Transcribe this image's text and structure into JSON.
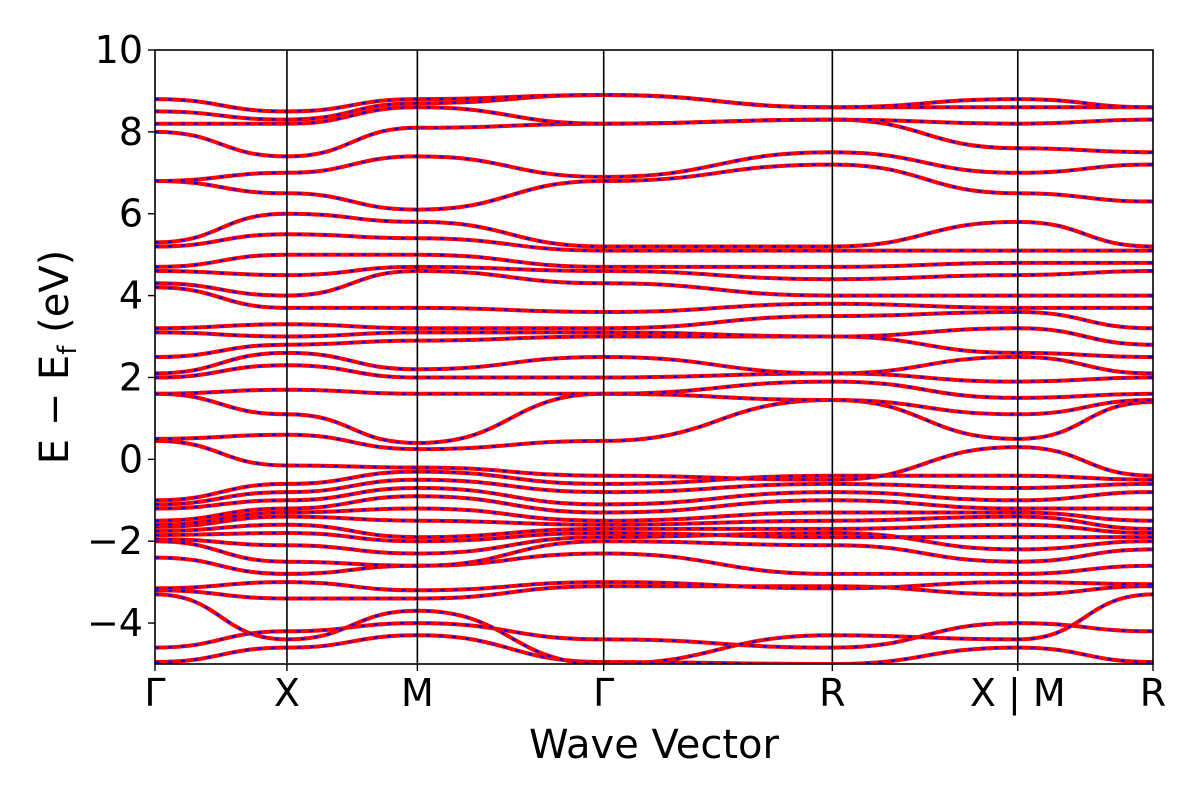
{
  "chart_data": {
    "type": "line",
    "xlabel": "Wave Vector",
    "ylabel_main": "E − E",
    "ylabel_sub": "f",
    "ylabel_unit": " (eV)",
    "ylim": [
      -5,
      10
    ],
    "yticks": [
      {
        "value": -4,
        "label": "−4"
      },
      {
        "value": -2,
        "label": "−2"
      },
      {
        "value": 0,
        "label": "0"
      },
      {
        "value": 2,
        "label": "2"
      },
      {
        "value": 4,
        "label": "4"
      },
      {
        "value": 6,
        "label": "6"
      },
      {
        "value": 8,
        "label": "8"
      },
      {
        "value": 10,
        "label": "10"
      }
    ],
    "xlim": [
      0,
      1
    ],
    "kpoints": [
      {
        "pos": 0.0,
        "label": "Γ"
      },
      {
        "pos": 0.1322,
        "label": "X"
      },
      {
        "pos": 0.2629,
        "label": "M"
      },
      {
        "pos": 0.4496,
        "label": "Γ"
      },
      {
        "pos": 0.6787,
        "label": "R"
      },
      {
        "pos": 0.8645,
        "label": "X | M"
      },
      {
        "pos": 1.0,
        "label": "R"
      }
    ],
    "segment_break": 0.8645,
    "series": [
      {
        "color": "#ff0000",
        "style": "solid"
      },
      {
        "color": "#0000ff",
        "style": "dashed"
      }
    ],
    "bands": [
      {
        "y": [
          -4.95,
          -4.6,
          -4.3,
          -4.95,
          -5.0,
          -4.6,
          -4.95
        ]
      },
      {
        "y": [
          -4.6,
          -4.2,
          -4.0,
          -4.4,
          -4.6,
          -4.0,
          -4.2
        ]
      },
      {
        "y": [
          -3.3,
          -4.4,
          -3.7,
          -5.0,
          -4.3,
          -4.4,
          -3.3
        ]
      },
      {
        "y": [
          -3.2,
          -3.4,
          -3.4,
          -3.1,
          -3.1,
          -3.3,
          -3.1
        ]
      },
      {
        "y": [
          -3.15,
          -3.0,
          -3.2,
          -3.0,
          -3.15,
          -3.0,
          -3.05
        ]
      },
      {
        "y": [
          -2.4,
          -2.8,
          -2.6,
          -2.3,
          -2.8,
          -2.8,
          -2.6
        ]
      },
      {
        "y": [
          -2.0,
          -2.5,
          -2.6,
          -2.0,
          -2.1,
          -2.5,
          -2.2
        ]
      },
      {
        "y": [
          -1.95,
          -2.1,
          -2.3,
          -1.9,
          -1.8,
          -2.2,
          -2.0
        ]
      },
      {
        "y": [
          -1.85,
          -1.8,
          -2.0,
          -1.8,
          -1.9,
          -1.9,
          -1.9
        ]
      },
      {
        "y": [
          -1.75,
          -1.6,
          -1.9,
          -1.7,
          -1.7,
          -1.6,
          -1.8
        ]
      },
      {
        "y": [
          -1.65,
          -1.4,
          -1.5,
          -1.6,
          -1.5,
          -1.4,
          -1.7
        ]
      },
      {
        "y": [
          -1.6,
          -1.3,
          -1.2,
          -1.5,
          -1.3,
          -1.3,
          -1.5
        ]
      },
      {
        "y": [
          -1.5,
          -1.2,
          -0.9,
          -1.3,
          -1.0,
          -1.2,
          -1.2
        ]
      },
      {
        "y": [
          -1.2,
          -1.0,
          -0.7,
          -1.1,
          -0.8,
          -1.0,
          -0.8
        ]
      },
      {
        "y": [
          -1.1,
          -0.8,
          -0.5,
          -0.8,
          -0.6,
          -0.7,
          -0.6
        ]
      },
      {
        "y": [
          -1.0,
          -0.6,
          -0.3,
          -0.6,
          -0.4,
          -0.4,
          -0.5
        ]
      },
      {
        "y": [
          0.45,
          -0.15,
          -0.2,
          -0.4,
          -0.5,
          0.3,
          -0.4
        ]
      },
      {
        "y": [
          0.5,
          0.6,
          0.25,
          0.45,
          1.45,
          0.5,
          1.4
        ]
      },
      {
        "y": [
          1.6,
          1.1,
          0.4,
          1.6,
          1.45,
          1.1,
          1.45
        ]
      },
      {
        "y": [
          1.6,
          1.7,
          1.6,
          1.6,
          1.9,
          1.5,
          1.6
        ]
      },
      {
        "y": [
          2.0,
          2.3,
          2.0,
          2.0,
          2.1,
          1.9,
          2.0
        ]
      },
      {
        "y": [
          2.1,
          2.6,
          2.2,
          2.5,
          2.1,
          2.5,
          2.1
        ]
      },
      {
        "y": [
          2.5,
          2.8,
          2.9,
          3.0,
          3.0,
          2.6,
          2.5
        ]
      },
      {
        "y": [
          3.1,
          3.0,
          3.1,
          3.1,
          3.0,
          3.2,
          2.8
        ]
      },
      {
        "y": [
          3.2,
          3.3,
          3.2,
          3.2,
          3.5,
          3.6,
          3.2
        ]
      },
      {
        "y": [
          4.2,
          3.7,
          3.7,
          3.6,
          3.8,
          3.7,
          3.7
        ]
      },
      {
        "y": [
          4.3,
          4.0,
          4.6,
          4.3,
          4.0,
          4.0,
          4.0
        ]
      },
      {
        "y": [
          4.6,
          4.5,
          4.7,
          4.6,
          4.4,
          4.5,
          4.6
        ]
      },
      {
        "y": [
          4.7,
          5.0,
          5.0,
          4.7,
          4.7,
          4.8,
          4.8
        ]
      },
      {
        "y": [
          5.2,
          5.5,
          5.4,
          5.1,
          5.1,
          5.1,
          5.1
        ]
      },
      {
        "y": [
          5.3,
          6.0,
          5.8,
          5.2,
          5.2,
          5.8,
          5.2
        ]
      },
      {
        "y": [
          6.8,
          6.5,
          6.1,
          6.8,
          7.2,
          6.5,
          6.3
        ]
      },
      {
        "y": [
          6.8,
          7.0,
          7.4,
          6.9,
          7.5,
          7.0,
          7.2
        ]
      },
      {
        "y": [
          8.0,
          7.4,
          8.1,
          8.2,
          8.3,
          7.6,
          7.5
        ]
      },
      {
        "y": [
          8.2,
          8.2,
          8.6,
          8.2,
          8.3,
          8.2,
          8.3
        ]
      },
      {
        "y": [
          8.5,
          8.3,
          8.7,
          8.9,
          8.6,
          8.6,
          8.6
        ]
      },
      {
        "y": [
          8.8,
          8.5,
          8.8,
          8.9,
          8.6,
          8.8,
          8.6
        ]
      }
    ]
  }
}
